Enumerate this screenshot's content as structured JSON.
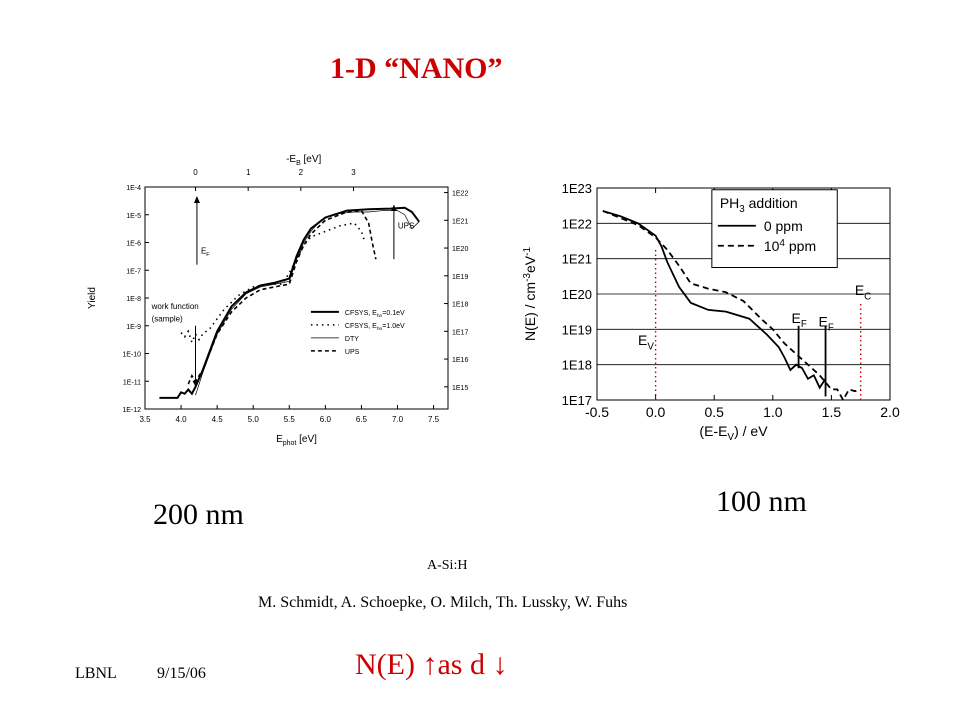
{
  "slide": {
    "title": "1-D  “NANO”",
    "label_200": "200 nm",
    "label_100": "100 nm",
    "material": "A-Si:H",
    "authors": "M. Schmidt, A. Schoepke, O. Milch, Th. Lussky, W. Fuhs",
    "footer_org": "LBNL",
    "footer_date": "9/15/06",
    "conclusion_prefix": "N(E) ",
    "conclusion_up": "↑",
    "conclusion_mid": "as d ",
    "conclusion_down": "↓"
  },
  "chart_data": [
    {
      "type": "line",
      "xlabel_main": "E",
      "xlabel_sub": "phot",
      "xlabel_unit": " [eV]",
      "toplabel_main": "-E",
      "toplabel_sub": "B",
      "toplabel_unit": " [eV]",
      "ylabel": "Yield",
      "xlim": [
        3.5,
        7.7
      ],
      "x_ticks": [
        "3.5",
        "4.0",
        "4.5",
        "5.0",
        "5.5",
        "6.0",
        "6.5",
        "7.0",
        "7.5"
      ],
      "top_ticks": [
        "0",
        "1",
        "2",
        "3"
      ],
      "y_ticks": [
        "1E-12",
        "1E-11",
        "1E-10",
        "1E-9",
        "1E-8",
        "1E-7",
        "1E-6",
        "1E-5",
        "1E-4"
      ],
      "right_ticks": [
        "1E15",
        "1E16",
        "1E17",
        "1E18",
        "1E19",
        "1E20",
        "1E21",
        "1E22"
      ],
      "annotations": {
        "ef_main": "E",
        "ef_sub": "F",
        "ups": "UPS",
        "work_function_1": "work function",
        "work_function_2": "(sample)"
      },
      "legend": [
        {
          "main": "CFSYS, E",
          "sub": "hn",
          "tail": "=0.1eV",
          "style": "solid-thick"
        },
        {
          "main": "CFSYS, E",
          "sub": "hn",
          "tail": "=1.0eV",
          "style": "dotted"
        },
        {
          "main": "DTY",
          "sub": "",
          "tail": "",
          "style": "thin"
        },
        {
          "main": "UPS",
          "sub": "",
          "tail": "",
          "style": "dashed"
        }
      ],
      "series": [
        {
          "name": "CFSYS, Ehn=0.1eV",
          "x": [
            3.7,
            3.95,
            4.0,
            4.05,
            4.1,
            4.15,
            4.2,
            4.3,
            4.5,
            4.7,
            4.9,
            5.1,
            5.3,
            5.5,
            5.6,
            5.7,
            5.8,
            6.0,
            6.3,
            6.6,
            6.9,
            7.1,
            7.2,
            7.3
          ],
          "y": [
            -11.6,
            -11.6,
            -11.4,
            -11.45,
            -11.3,
            -11.45,
            -11.2,
            -10.6,
            -9.2,
            -8.3,
            -7.8,
            -7.55,
            -7.45,
            -7.3,
            -6.5,
            -5.9,
            -5.5,
            -5.1,
            -4.85,
            -4.8,
            -4.78,
            -4.75,
            -4.9,
            -5.25
          ]
        },
        {
          "name": "CFSYS, Ehn=1.0eV",
          "x": [
            4.0,
            4.05,
            4.1,
            4.15,
            4.2,
            4.25,
            4.3,
            4.4,
            4.6,
            4.8,
            5.0,
            5.2,
            5.4,
            5.5,
            5.6,
            5.7,
            5.8,
            6.0,
            6.2,
            6.4,
            6.5,
            6.55
          ],
          "y": [
            -9.25,
            -9.4,
            -9.2,
            -9.6,
            -9.3,
            -9.5,
            -9.3,
            -9.1,
            -8.4,
            -7.9,
            -7.6,
            -7.5,
            -7.5,
            -7.1,
            -6.6,
            -6.1,
            -5.8,
            -5.6,
            -5.4,
            -5.3,
            -5.6,
            -6.0
          ]
        },
        {
          "name": "DTY",
          "x": [
            4.2,
            4.3,
            4.5,
            4.7,
            4.9,
            5.1,
            5.3,
            5.5,
            5.6,
            5.7,
            5.8,
            5.9,
            6.0,
            6.1,
            6.2,
            6.4,
            6.6,
            6.8,
            7.0,
            7.1,
            7.2,
            7.3
          ],
          "y": [
            -11.5,
            -10.7,
            -9.3,
            -8.4,
            -7.85,
            -7.6,
            -7.5,
            -7.4,
            -6.6,
            -6.0,
            -5.6,
            -5.3,
            -5.1,
            -5.0,
            -4.95,
            -4.9,
            -4.9,
            -4.85,
            -4.85,
            -5.0,
            -5.5,
            -5.25
          ]
        },
        {
          "name": "UPS",
          "x": [
            4.1,
            4.15,
            4.2,
            4.3,
            4.5,
            4.7,
            4.9,
            5.1,
            5.3,
            5.5,
            5.6,
            5.7,
            5.8,
            6.0,
            6.3,
            6.5,
            6.6,
            6.65,
            6.7
          ],
          "y": [
            -11.1,
            -10.8,
            -11.0,
            -10.6,
            -9.3,
            -8.5,
            -8.0,
            -7.7,
            -7.6,
            -7.5,
            -6.7,
            -6.1,
            -5.7,
            -5.2,
            -4.9,
            -4.85,
            -5.3,
            -6.0,
            -6.6
          ]
        }
      ]
    },
    {
      "type": "line",
      "xlabel": "(E-E",
      "xlabel_sub": "V",
      "xlabel_tail": ") / eV",
      "ylabel": "N(E) / cm",
      "ylabel_sup": "-3",
      "ylabel_tail": "eV",
      "ylabel_sup2": "-1",
      "xlim": [
        -0.5,
        2.0
      ],
      "ylim": [
        1e+17,
        1e+23
      ],
      "x_ticks": [
        "-0.5",
        "0.0",
        "0.5",
        "1.0",
        "1.5",
        "2.0"
      ],
      "y_ticks": [
        "1E17",
        "1E18",
        "1E19",
        "1E20",
        "1E21",
        "1E22",
        "1E23"
      ],
      "legend_title_main": "PH",
      "legend_title_sub": "3",
      "legend_title_tail": " addition",
      "legend": [
        {
          "name": "0 ppm",
          "style": "solid"
        },
        {
          "name": "10",
          "sup": "4",
          "tail": " ppm",
          "style": "dashed"
        }
      ],
      "annotations": {
        "ev_main": "E",
        "ev_sub": "V",
        "ef1_main": "E",
        "ef1_sub": "F",
        "ef2_main": "E",
        "ef2_sub": "F",
        "ec_main": "E",
        "ec_sub": "C"
      },
      "series": [
        {
          "name": "0 ppm",
          "x": [
            -0.45,
            -0.3,
            -0.15,
            0.0,
            0.05,
            0.1,
            0.2,
            0.3,
            0.45,
            0.6,
            0.8,
            0.95,
            1.05,
            1.1,
            1.15,
            1.2,
            1.25,
            1.3,
            1.35,
            1.4,
            1.45
          ],
          "y": [
            22.35,
            22.2,
            22.0,
            21.65,
            21.35,
            20.9,
            20.2,
            19.75,
            19.55,
            19.5,
            19.3,
            18.85,
            18.5,
            18.2,
            17.85,
            18.0,
            17.9,
            17.6,
            17.7,
            17.35,
            17.6
          ]
        },
        {
          "name": "10^4 ppm",
          "x": [
            -0.45,
            -0.3,
            -0.15,
            0.0,
            0.1,
            0.2,
            0.3,
            0.45,
            0.6,
            0.75,
            0.9,
            1.0,
            1.1,
            1.2,
            1.3,
            1.4,
            1.5,
            1.55,
            1.6,
            1.65,
            1.7,
            1.75
          ],
          "y": [
            22.35,
            22.15,
            21.95,
            21.6,
            21.25,
            20.8,
            20.3,
            20.15,
            20.05,
            19.8,
            19.3,
            19.0,
            18.6,
            18.3,
            18.0,
            17.7,
            17.3,
            17.3,
            17.0,
            17.3,
            17.25,
            17.3
          ]
        }
      ]
    }
  ]
}
